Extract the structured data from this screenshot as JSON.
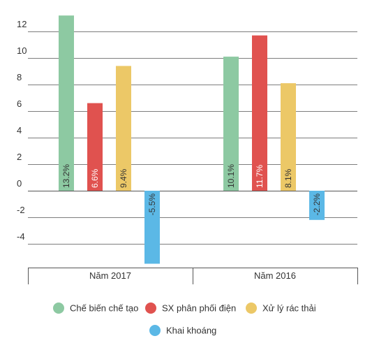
{
  "chart_data": {
    "type": "bar",
    "categories": [
      "Năm 2017",
      "Năm 2016"
    ],
    "series": [
      {
        "name": "Chế biến chế tạo",
        "values": [
          13.2,
          10.1
        ],
        "labels": [
          "13.2%",
          "10.1%"
        ],
        "color": "#8dc9a2"
      },
      {
        "name": "SX phân phối điện",
        "values": [
          6.6,
          11.7
        ],
        "labels": [
          "6.6%",
          "11.7%"
        ],
        "color": "#e0524f"
      },
      {
        "name": "Xử lý rác thải",
        "values": [
          9.4,
          8.1
        ],
        "labels": [
          "9.4%",
          "8.1%"
        ],
        "color": "#ecc867"
      },
      {
        "name": "Khai khoáng",
        "values": [
          -5.5,
          -2.2
        ],
        "labels": [
          "-5.5%",
          "-2.2%"
        ],
        "color": "#5bb8e6"
      }
    ],
    "y_ticks": [
      12,
      10,
      8,
      6,
      4,
      2,
      0,
      -2,
      -4
    ],
    "ylim": [
      -5.6,
      13.6
    ],
    "grid": true,
    "legend_position": "bottom"
  }
}
